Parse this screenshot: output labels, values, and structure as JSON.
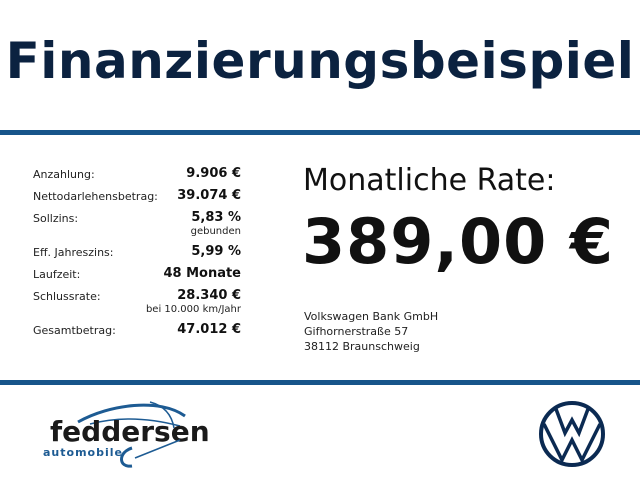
{
  "header": {
    "title": "Finanzierungsbeispiel"
  },
  "details": [
    {
      "label": "Anzahlung:",
      "value": "9.906 €"
    },
    {
      "label": "Nettodarlehensbetrag:",
      "value": "39.074 €"
    },
    {
      "label": "Sollzins:",
      "value": "5,83 %",
      "note": "gebunden"
    },
    {
      "label": "Eff. Jahreszins:",
      "value": "5,99 %"
    },
    {
      "label": "Laufzeit:",
      "value": "48 Monate"
    },
    {
      "label": "Schlussrate:",
      "value": "28.340 €",
      "note": "bei 10.000 km/Jahr"
    },
    {
      "label": "Gesamtbetrag:",
      "value": "47.012 €"
    }
  ],
  "rate": {
    "label": "Monatliche Rate:",
    "value": "389,00 €"
  },
  "bank": {
    "name": "Volkswagen Bank GmbH",
    "street": "Gifhornerstraße 57",
    "city": "38112 Braunschweig"
  },
  "logos": {
    "dealer": "feddersen",
    "dealer_sub": "automobile",
    "brand": "VW"
  },
  "colors": {
    "title": "#0b2240",
    "rule": "#17558a",
    "logo_blue": "#1d5b93",
    "vw_blue": "#0b2a52"
  }
}
